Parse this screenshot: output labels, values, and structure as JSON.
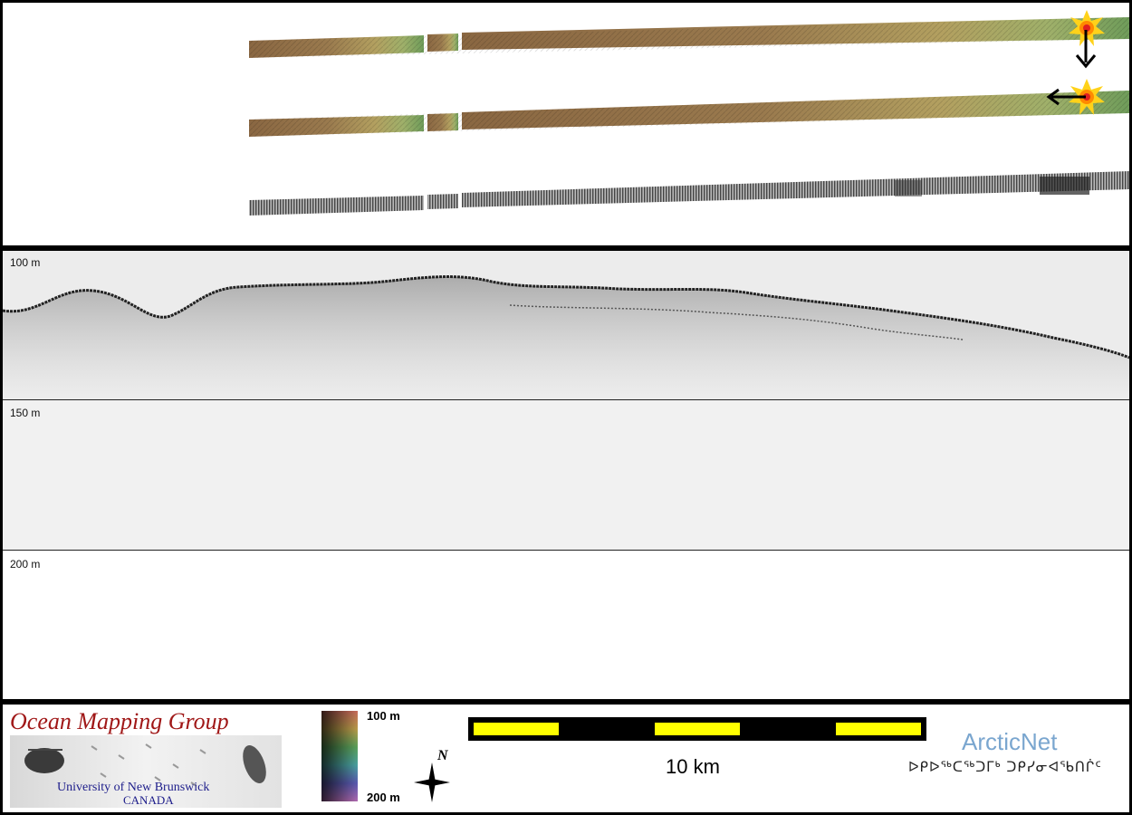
{
  "profile": {
    "depth_labels": [
      "100 m",
      "150 m",
      "200 m"
    ]
  },
  "legend": {
    "colorbar_top_label": "100 m",
    "colorbar_bottom_label": "200 m",
    "scale_label": "10 km",
    "north_label": "N"
  },
  "logos": {
    "omg_title": "Ocean Mapping Group",
    "omg_university": "University of New Brunswick",
    "omg_country": "CANADA",
    "arcticnet": "ArcticNet",
    "arcticnet_inuktitut": "ᐅᑭᐅᖅᑕᖅᑐᒥᒃ ᑐᑭᓯᓂᐊᖃᑎᒌᑦ"
  },
  "colors": {
    "scale_yellow": "#ffff00",
    "scale_black": "#000000",
    "omg_red": "#a01818",
    "omg_blue": "#1c1c8a",
    "arcticnet_blue": "#7aa6cf",
    "strip_brown": "#8b6a45",
    "strip_green": "#7fa35a"
  },
  "icons": [
    "sunburst-marker-icon",
    "arrow-down-icon",
    "arrow-left-icon",
    "north-arrow-icon"
  ]
}
